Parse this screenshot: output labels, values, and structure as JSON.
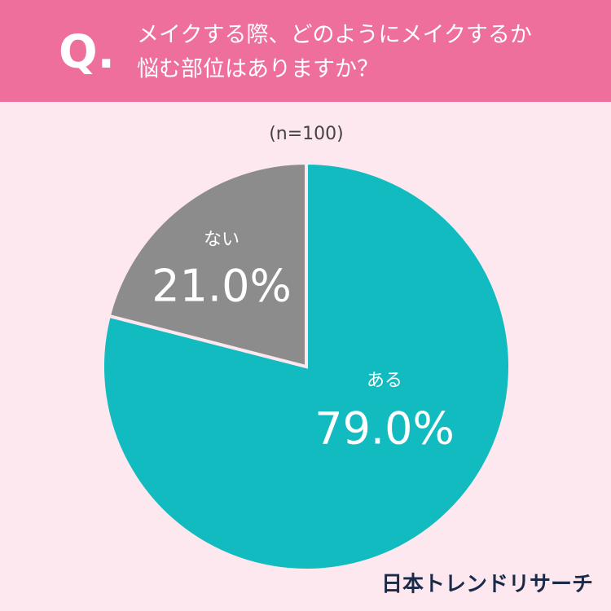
{
  "chart_data": {
    "type": "pie",
    "question_label": "Q.",
    "title": [
      "メイクする際、どのようにメイクするか",
      "悩む部位はありますか？"
    ],
    "subtitle": "(n=100)",
    "categories": [
      "ある",
      "ない"
    ],
    "values": [
      79.0,
      21.0
    ],
    "value_labels": [
      "79.0%",
      "21.0%"
    ],
    "colors": [
      "#12bbbf",
      "#8c8c8c"
    ],
    "source": "日本トレンドリサーチ"
  }
}
